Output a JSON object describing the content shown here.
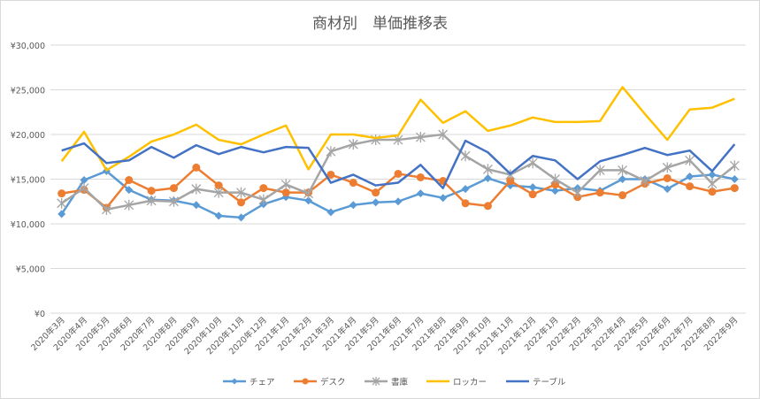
{
  "chart_data": {
    "type": "line",
    "title": "商材別　単価推移表",
    "xlabel": "",
    "ylabel": "",
    "ylim": [
      0,
      30000
    ],
    "yticks": [
      "¥0",
      "¥5,000",
      "¥10,000",
      "¥15,000",
      "¥20,000",
      "¥25,000",
      "¥30,000"
    ],
    "ytick_values": [
      0,
      5000,
      10000,
      15000,
      20000,
      25000,
      30000
    ],
    "grid": true,
    "legend_position": "bottom",
    "categories": [
      "2020年3月",
      "2020年4月",
      "2020年5月",
      "2020年6月",
      "2020年7月",
      "2020年8月",
      "2020年9月",
      "2020年10月",
      "2020年11月",
      "2020年12月",
      "2021年1月",
      "2021年2月",
      "2021年3月",
      "2021年4月",
      "2021年5月",
      "2021年6月",
      "2021年7月",
      "2021年8月",
      "2021年9月",
      "2021年10月",
      "2021年11月",
      "2021年12月",
      "2022年1月",
      "2022年2月",
      "2022年3月",
      "2022年4月",
      "2022年5月",
      "2022年6月",
      "2022年7月",
      "2022年8月",
      "2022年9月"
    ],
    "series": [
      {
        "name": "チェア",
        "color": "#5b9bd5",
        "marker": "diamond",
        "values": [
          11100,
          14900,
          15900,
          13800,
          12700,
          12600,
          12100,
          10900,
          10700,
          12200,
          13000,
          12600,
          11300,
          12100,
          12400,
          12500,
          13400,
          12900,
          13900,
          15100,
          14300,
          14100,
          13700,
          14000,
          13700,
          15000,
          15000,
          13900,
          15300,
          15500,
          15000
        ]
      },
      {
        "name": "デスク",
        "color": "#ed7d31",
        "marker": "circle",
        "values": [
          13400,
          13800,
          11800,
          14900,
          13700,
          14000,
          16300,
          14300,
          12400,
          14000,
          13500,
          13500,
          15500,
          14600,
          13500,
          15600,
          15200,
          14800,
          12300,
          12000,
          14800,
          13300,
          14400,
          13000,
          13500,
          13200,
          14500,
          15100,
          14200,
          13600,
          14000
        ]
      },
      {
        "name": "書庫",
        "color": "#a5a5a5",
        "marker": "star",
        "values": [
          12300,
          14000,
          11600,
          12100,
          12600,
          12500,
          13900,
          13500,
          13500,
          12700,
          14400,
          13400,
          18100,
          18900,
          19400,
          19400,
          19700,
          20000,
          17600,
          16100,
          15500,
          16800,
          15000,
          13500,
          16000,
          16000,
          14800,
          16300,
          17100,
          14500,
          16500
        ]
      },
      {
        "name": "ロッカー",
        "color": "#ffc000",
        "marker": "none",
        "values": [
          17000,
          20300,
          16000,
          17500,
          19200,
          20000,
          21100,
          19400,
          18900,
          20000,
          21000,
          16100,
          20000,
          20000,
          19600,
          19900,
          23900,
          21300,
          22600,
          20400,
          21000,
          21900,
          21400,
          21400,
          21500,
          25300,
          22300,
          19400,
          22800,
          23000,
          24000
        ]
      },
      {
        "name": "テーブル",
        "color": "#4472c4",
        "marker": "none",
        "values": [
          18200,
          19000,
          16800,
          17100,
          18600,
          17400,
          18800,
          17800,
          18600,
          18000,
          18600,
          18500,
          14600,
          15500,
          14300,
          14600,
          16600,
          14000,
          19300,
          18000,
          15600,
          17600,
          17100,
          15000,
          17000,
          17700,
          18500,
          17700,
          18200,
          15900,
          18900
        ]
      }
    ]
  }
}
